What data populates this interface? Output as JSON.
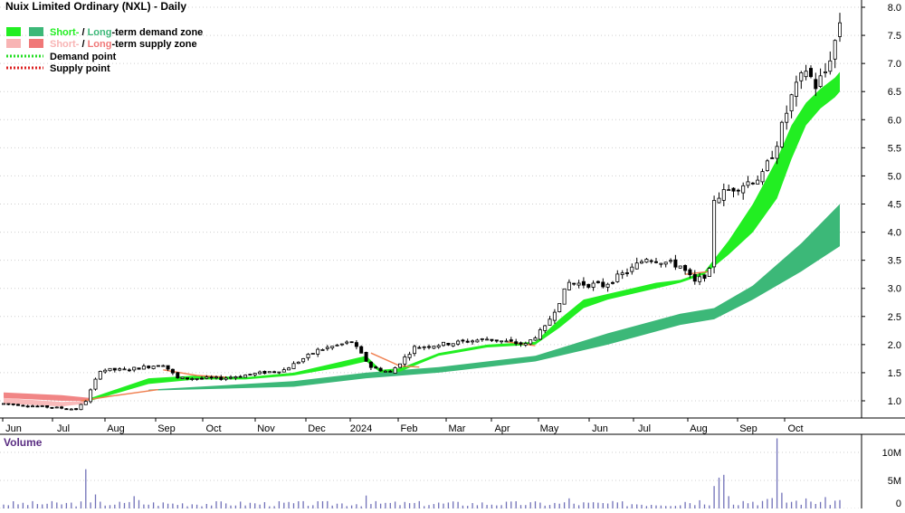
{
  "title": "Nuix Limited Ordinary (NXL) - Daily",
  "legend": {
    "demand_zone": {
      "short": "Short-",
      "sep": " / ",
      "long": "Long",
      "rest": "-term demand zone"
    },
    "supply_zone": {
      "short": "Short-",
      "sep": " / ",
      "long": "Long",
      "rest": "-term supply zone"
    },
    "demand_point": "Demand point",
    "supply_point": "Supply point"
  },
  "colors": {
    "short_demand": "#22ee22",
    "long_demand": "#3cb878",
    "short_supply": "#f8b4b4",
    "long_supply": "#f07878",
    "short_transition": "#f08050",
    "demand_point": "#22dd22",
    "supply_point": "#dd2222",
    "volume": "#7070b8",
    "volume_label": "#5a2d82",
    "candle": "#000000"
  },
  "chart_data": [
    {
      "type": "candlestick",
      "title": "Nuix Limited Ordinary (NXL) - Daily",
      "x_ticks": [
        "Jun",
        "Jul",
        "Aug",
        "Sep",
        "Oct",
        "Nov",
        "Dec",
        "2024",
        "Feb",
        "Mar",
        "Apr",
        "May",
        "Jun",
        "Jul",
        "Aug",
        "Sep",
        "Oct"
      ],
      "y_ticks": [
        "8.0",
        "7.5",
        "7.0",
        "6.5",
        "6.0",
        "5.5",
        "5.0",
        "4.5",
        "4.0",
        "3.5",
        "3.0",
        "2.5",
        "2.0",
        "1.5",
        "1.0"
      ],
      "ylim": [
        0.7,
        8.1
      ],
      "price_path": [
        [
          0,
          0.95
        ],
        [
          15,
          0.85
        ],
        [
          17,
          1.0
        ],
        [
          20,
          1.55
        ],
        [
          25,
          1.55
        ],
        [
          33,
          1.65
        ],
        [
          36,
          1.4
        ],
        [
          45,
          1.4
        ],
        [
          58,
          1.55
        ],
        [
          65,
          1.9
        ],
        [
          72,
          2.05
        ],
        [
          76,
          1.6
        ],
        [
          80,
          1.5
        ],
        [
          85,
          1.95
        ],
        [
          100,
          2.1
        ],
        [
          108,
          2.0
        ],
        [
          112,
          2.3
        ],
        [
          117,
          3.1
        ],
        [
          124,
          3.05
        ],
        [
          130,
          3.35
        ],
        [
          133,
          3.55
        ],
        [
          140,
          3.4
        ],
        [
          143,
          3.1
        ],
        [
          146,
          3.3
        ],
        [
          147,
          4.6
        ],
        [
          150,
          4.75
        ],
        [
          157,
          5.0
        ],
        [
          160,
          5.6
        ],
        [
          163,
          6.4
        ],
        [
          166,
          6.9
        ],
        [
          168,
          6.6
        ],
        [
          170,
          6.85
        ],
        [
          172,
          7.4
        ],
        [
          173,
          7.75
        ]
      ],
      "short_demand_zone": {
        "x": [
          18,
          30,
          40,
          50,
          60,
          70,
          75,
          78,
          82,
          90,
          100,
          110,
          115,
          120,
          125,
          135,
          140,
          145,
          150,
          155,
          160,
          163,
          166,
          169,
          172,
          173
        ],
        "upper": [
          1.05,
          1.4,
          1.45,
          1.42,
          1.5,
          1.7,
          1.8,
          1.55,
          1.58,
          1.85,
          2.0,
          2.05,
          2.45,
          2.8,
          2.9,
          3.1,
          3.15,
          3.3,
          3.85,
          4.5,
          5.3,
          5.9,
          6.3,
          6.55,
          6.75,
          6.85
        ],
        "lower": [
          1.0,
          1.3,
          1.38,
          1.38,
          1.45,
          1.6,
          1.7,
          1.5,
          1.52,
          1.8,
          1.95,
          2.0,
          2.3,
          2.65,
          2.8,
          3.0,
          3.1,
          3.25,
          3.6,
          4.0,
          4.6,
          5.3,
          5.9,
          6.2,
          6.4,
          6.5
        ]
      },
      "long_demand_zone": {
        "x": [
          30,
          60,
          75,
          90,
          110,
          125,
          140,
          147,
          155,
          165,
          173
        ],
        "upper": [
          1.2,
          1.35,
          1.5,
          1.6,
          1.8,
          2.2,
          2.55,
          2.65,
          3.05,
          3.8,
          4.5
        ],
        "lower": [
          1.18,
          1.25,
          1.4,
          1.5,
          1.7,
          2.0,
          2.35,
          2.45,
          2.8,
          3.3,
          3.75
        ]
      },
      "long_supply_zone": {
        "x": [
          0,
          12,
          18
        ],
        "upper": [
          1.15,
          1.1,
          1.05
        ],
        "lower": [
          1.05,
          1.0,
          1.0
        ]
      },
      "short_supply_zone": {
        "x": [
          0,
          12,
          17
        ],
        "upper": [
          1.05,
          0.98,
          1.0
        ],
        "lower": [
          0.95,
          0.9,
          0.95
        ]
      }
    },
    {
      "type": "bar",
      "title": "Volume",
      "y_ticks": [
        "10M",
        "5M",
        "0"
      ],
      "ylim": [
        0,
        12
      ],
      "baseline": 0.9,
      "spikes": [
        [
          17,
          7.0
        ],
        [
          19,
          2.5
        ],
        [
          27,
          2.2
        ],
        [
          28,
          1.5
        ],
        [
          75,
          2.3
        ],
        [
          117,
          1.8
        ],
        [
          147,
          4.0
        ],
        [
          148,
          5.5
        ],
        [
          149,
          6.0
        ],
        [
          150,
          2.2
        ],
        [
          160,
          12.5
        ],
        [
          161,
          2.8
        ],
        [
          173,
          1.5
        ]
      ]
    }
  ]
}
